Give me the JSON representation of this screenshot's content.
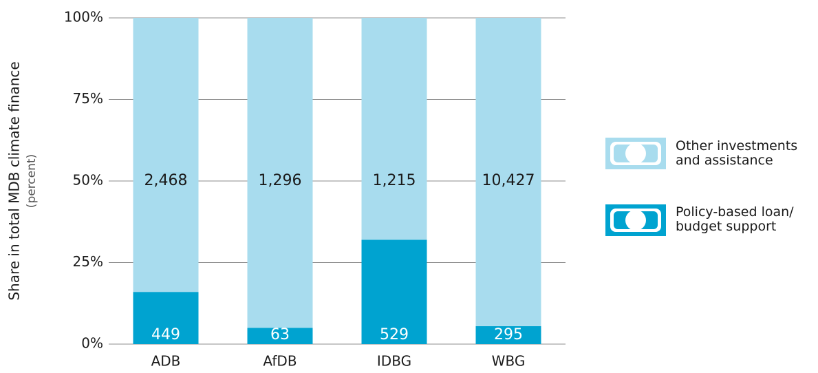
{
  "chart_data": {
    "type": "bar",
    "stacking": "stacked",
    "ylabel": "Share in total MDB climate finance",
    "ylabel_unit": "(percent)",
    "categories": [
      "ADB",
      "AfDB",
      "IDBG",
      "WBG"
    ],
    "series": [
      {
        "name": "Policy-based loan/ budget support",
        "color": "#00a3d0",
        "label_color": "#ffffff",
        "values": [
          16,
          5,
          32,
          5.5
        ],
        "labels": [
          "449",
          "63",
          "529",
          "295"
        ]
      },
      {
        "name": "Other investments and assistance",
        "color": "#a8dcee",
        "label_color": "#1a1a1a",
        "values": [
          84,
          95,
          68,
          94.5
        ],
        "labels": [
          "2,468",
          "1,296",
          "1,215",
          "10,427"
        ]
      }
    ],
    "ylim": [
      0,
      100
    ],
    "yticks": [
      {
        "value": 0,
        "label": "0%"
      },
      {
        "value": 25,
        "label": "25%"
      },
      {
        "value": 50,
        "label": "50%"
      },
      {
        "value": 75,
        "label": "75%"
      },
      {
        "value": 100,
        "label": "100%"
      }
    ],
    "grid": true
  }
}
